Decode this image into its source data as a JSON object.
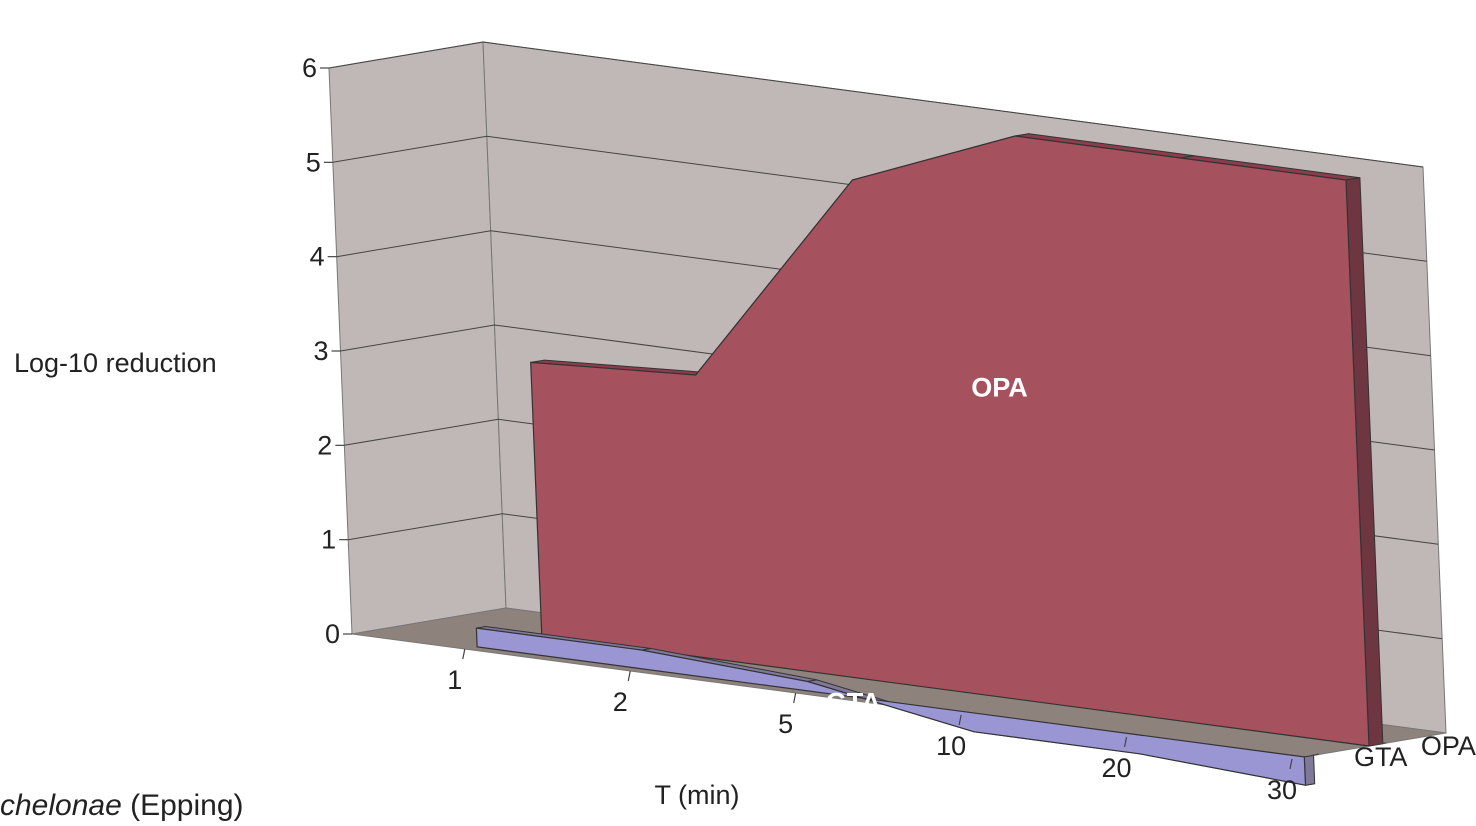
{
  "chart_data": {
    "type": "area",
    "view": "3d",
    "categories": [
      "1",
      "2",
      "5",
      "10",
      "20",
      "30"
    ],
    "xlabel": "T (min)",
    "ylabel": "Log-10 reduction",
    "yticks": [
      "0",
      "1",
      "2",
      "3",
      "4",
      "5",
      "6"
    ],
    "ylim": [
      0,
      6
    ],
    "grid": true,
    "series": [
      {
        "name": "GTA",
        "values": [
          0.2,
          0.2,
          0.1,
          -0.2,
          -0.2,
          -0.3
        ],
        "color": "#9a96d4",
        "top_color": "#7f7899"
      },
      {
        "name": "OPA",
        "values": [
          2.9,
          3.0,
          5.3,
          6.0,
          6.0,
          6.0
        ],
        "color": "#a5525e",
        "top_color": "#8a3e4b",
        "side_color": "#6e3640"
      }
    ],
    "depth_labels": [
      "GTA",
      "OPA"
    ],
    "inline_labels": [
      "OPA",
      "GTA"
    ],
    "wall_color": "#c0b8b6",
    "floor_color": "#8e827d"
  },
  "caption": {
    "italic": "chelonae",
    "rest": " (Epping)"
  }
}
